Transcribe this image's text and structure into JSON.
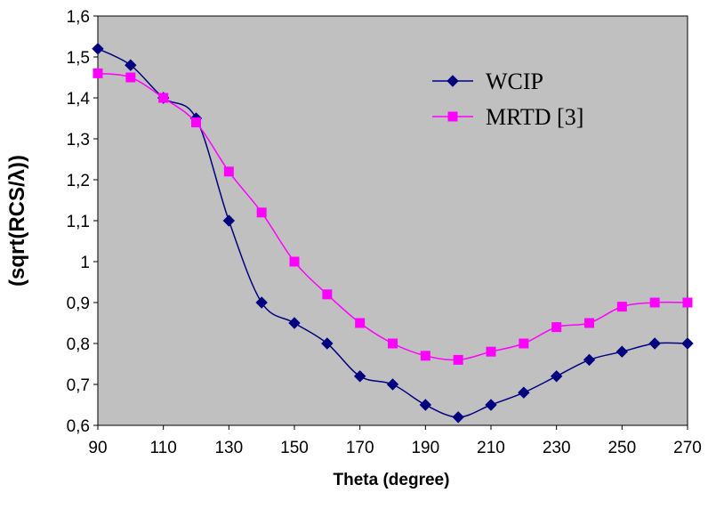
{
  "chart_data": {
    "type": "line",
    "xlabel": "Theta (degree)",
    "ylabel": "(sqrt(RCS/λ))",
    "xlim": [
      90,
      270
    ],
    "ylim": [
      0.6,
      1.6
    ],
    "x_ticks": [
      "90",
      "110",
      "130",
      "150",
      "170",
      "190",
      "210",
      "230",
      "250",
      "270"
    ],
    "y_ticks": [
      "0,6",
      "0,7",
      "0,8",
      "0,9",
      "1",
      "1,1",
      "1,2",
      "1,3",
      "1,4",
      "1,5",
      "1,6"
    ],
    "grid": false,
    "plot_background": "#C0C0C0",
    "legend_position": "top-right",
    "x": [
      90,
      100,
      110,
      120,
      130,
      140,
      150,
      160,
      170,
      180,
      190,
      200,
      210,
      220,
      230,
      240,
      250,
      260,
      270
    ],
    "series": [
      {
        "name": "WCIP",
        "color": "#000080",
        "marker": "diamond",
        "values": [
          1.52,
          1.48,
          1.4,
          1.35,
          1.1,
          0.9,
          0.85,
          0.8,
          0.72,
          0.7,
          0.65,
          0.62,
          0.65,
          0.68,
          0.72,
          0.76,
          0.78,
          0.8,
          0.8
        ]
      },
      {
        "name": "MRTD [3]",
        "color": "#FF00FF",
        "marker": "square",
        "values": [
          1.46,
          1.45,
          1.4,
          1.34,
          1.22,
          1.12,
          1.0,
          0.92,
          0.85,
          0.8,
          0.77,
          0.76,
          0.78,
          0.8,
          0.84,
          0.85,
          0.89,
          0.9,
          0.9
        ]
      }
    ]
  }
}
